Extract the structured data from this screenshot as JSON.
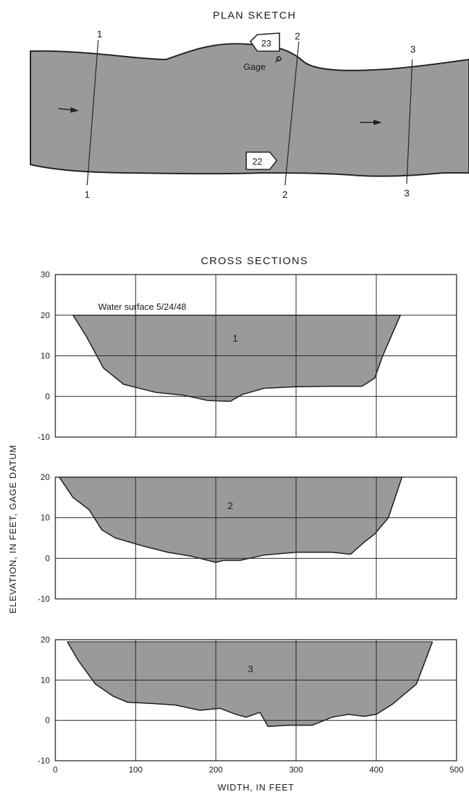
{
  "plan_sketch": {
    "title": "PLAN SKETCH",
    "section_labels_top": [
      "1",
      "2",
      "3"
    ],
    "section_labels_bottom": [
      "1",
      "2",
      "3"
    ],
    "markers": [
      "23",
      "22"
    ],
    "gage_label": "Gage",
    "colors": {
      "water": "#9a9a9a",
      "ink": "#222222"
    }
  },
  "cross_sections": {
    "title": "CROSS SECTIONS",
    "ylabel": "ELEVATION, IN FEET, GAGE DATUM",
    "xlabel": "WIDTH, IN FEET",
    "water_surface_label": "Water surface 5/24/48"
  },
  "chart_data": [
    {
      "type": "area",
      "name": "1",
      "xlim": [
        0,
        500
      ],
      "ylim": [
        -10,
        30
      ],
      "x_ticks": [],
      "y_ticks": [
        "30",
        "20",
        "10",
        "0",
        "-10"
      ],
      "water_surface": 20,
      "x": [
        22,
        38,
        60,
        85,
        125,
        160,
        190,
        218,
        233,
        260,
        300,
        340,
        382,
        398,
        408,
        430
      ],
      "y": [
        20,
        15,
        7,
        3,
        1,
        0.3,
        -1,
        -1.2,
        0.5,
        2,
        2.4,
        2.5,
        2.5,
        4.5,
        10,
        20
      ]
    },
    {
      "type": "area",
      "name": "2",
      "xlim": [
        0,
        500
      ],
      "ylim": [
        -10,
        20
      ],
      "x_ticks": [],
      "y_ticks": [
        "20",
        "10",
        "0",
        "-10"
      ],
      "water_surface": 20,
      "x": [
        5,
        22,
        42,
        58,
        75,
        110,
        140,
        170,
        200,
        210,
        230,
        260,
        300,
        345,
        368,
        385,
        398,
        415,
        432
      ],
      "y": [
        20,
        15,
        12,
        7,
        5,
        3,
        1.5,
        0.5,
        -1,
        -0.5,
        -0.5,
        0.8,
        1.5,
        1.5,
        1,
        4,
        6,
        10,
        20
      ]
    },
    {
      "type": "area",
      "name": "3",
      "xlim": [
        0,
        500
      ],
      "ylim": [
        -10,
        20
      ],
      "x_ticks": [
        "0",
        "100",
        "200",
        "300",
        "400",
        "500"
      ],
      "y_ticks": [
        "20",
        "10",
        "0",
        "-10"
      ],
      "water_surface": 19.5,
      "x": [
        15,
        28,
        50,
        72,
        90,
        120,
        150,
        180,
        205,
        225,
        238,
        255,
        265,
        290,
        320,
        345,
        365,
        385,
        400,
        420,
        450,
        470
      ],
      "y": [
        19.5,
        15,
        9,
        6,
        4.5,
        4.2,
        3.8,
        2.5,
        3,
        1.5,
        0.8,
        2,
        -1.5,
        -1.2,
        -1.2,
        0.8,
        1.5,
        1,
        1.5,
        4,
        9,
        19.5
      ]
    }
  ]
}
